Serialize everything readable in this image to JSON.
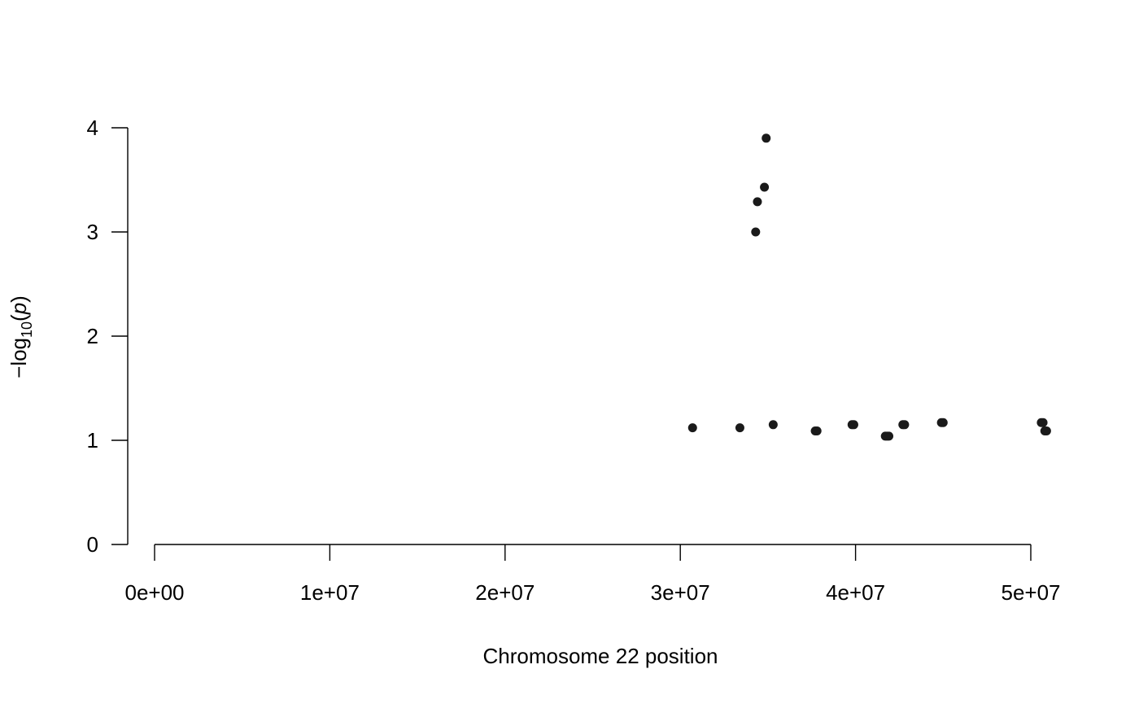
{
  "chart_data": {
    "type": "scatter",
    "title": "",
    "xlabel": "Chromosome 22 position",
    "ylabel": {
      "prefix": "−log",
      "subscript": "10",
      "open": "(",
      "var": "p",
      "close": ")"
    },
    "xlim": [
      0,
      50000000
    ],
    "ylim": [
      0,
      4
    ],
    "x_ticks": [
      {
        "value": 0,
        "label": "0e+00"
      },
      {
        "value": 10000000,
        "label": "1e+07"
      },
      {
        "value": 20000000,
        "label": "2e+07"
      },
      {
        "value": 30000000,
        "label": "3e+07"
      },
      {
        "value": 40000000,
        "label": "4e+07"
      },
      {
        "value": 50000000,
        "label": "5e+07"
      }
    ],
    "y_ticks": [
      {
        "value": 0,
        "label": "0"
      },
      {
        "value": 1,
        "label": "1"
      },
      {
        "value": 2,
        "label": "2"
      },
      {
        "value": 3,
        "label": "3"
      },
      {
        "value": 4,
        "label": "4"
      }
    ],
    "grid": false,
    "legend": "none",
    "point_color": "#1a1a1a",
    "series": [
      {
        "points": [
          {
            "x": 30700000,
            "y": 1.12
          },
          {
            "x": 33400000,
            "y": 1.12
          },
          {
            "x": 34300000,
            "y": 3.0
          },
          {
            "x": 34400000,
            "y": 3.29
          },
          {
            "x": 34800000,
            "y": 3.43
          },
          {
            "x": 34900000,
            "y": 3.9
          },
          {
            "x": 35300000,
            "y": 1.15
          },
          {
            "x": 37700000,
            "y": 1.09
          },
          {
            "x": 37800000,
            "y": 1.09
          },
          {
            "x": 39800000,
            "y": 1.15
          },
          {
            "x": 39900000,
            "y": 1.15
          },
          {
            "x": 41700000,
            "y": 1.04
          },
          {
            "x": 41800000,
            "y": 1.04
          },
          {
            "x": 41900000,
            "y": 1.04
          },
          {
            "x": 42700000,
            "y": 1.15
          },
          {
            "x": 42800000,
            "y": 1.15
          },
          {
            "x": 44900000,
            "y": 1.17
          },
          {
            "x": 45000000,
            "y": 1.17
          },
          {
            "x": 50600000,
            "y": 1.17
          },
          {
            "x": 50700000,
            "y": 1.17
          },
          {
            "x": 50800000,
            "y": 1.09
          },
          {
            "x": 50900000,
            "y": 1.09
          }
        ]
      }
    ]
  }
}
